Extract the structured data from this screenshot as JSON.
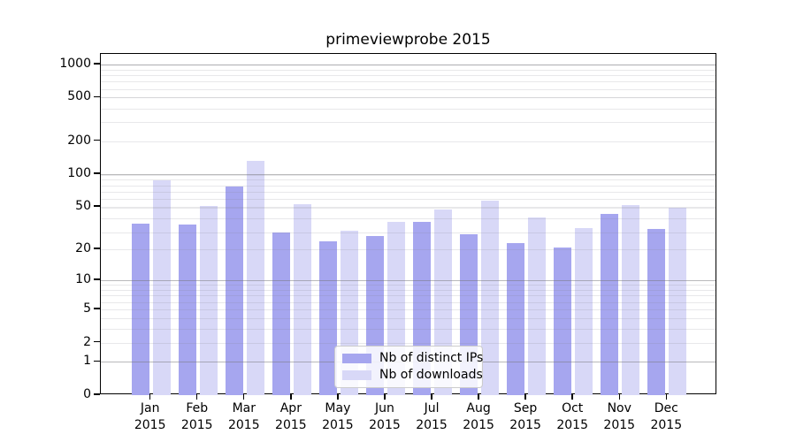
{
  "title": "primeviewprobe 2015",
  "legend": {
    "items": [
      {
        "label": "Nb of distinct IPs",
        "color": "#a6a6ef"
      },
      {
        "label": "Nb of downloads",
        "color": "#d8d8f7"
      }
    ]
  },
  "axes": {
    "y_tick_labels": [
      "1000",
      "500",
      "200",
      "100",
      "50",
      "20",
      "10",
      "5",
      "2",
      "1",
      "0"
    ],
    "x_tick_lines": [
      [
        "Jan",
        "2015"
      ],
      [
        "Feb",
        "2015"
      ],
      [
        "Mar",
        "2015"
      ],
      [
        "Apr",
        "2015"
      ],
      [
        "May",
        "2015"
      ],
      [
        "Jun",
        "2015"
      ],
      [
        "Jul",
        "2015"
      ],
      [
        "Aug",
        "2015"
      ],
      [
        "Sep",
        "2015"
      ],
      [
        "Oct",
        "2015"
      ],
      [
        "Nov",
        "2015"
      ],
      [
        "Dec",
        "2015"
      ]
    ]
  },
  "chart_data": {
    "type": "bar",
    "title": "primeviewprobe 2015",
    "categories": [
      "Jan 2015",
      "Feb 2015",
      "Mar 2015",
      "Apr 2015",
      "May 2015",
      "Jun 2015",
      "Jul 2015",
      "Aug 2015",
      "Sep 2015",
      "Oct 2015",
      "Nov 2015",
      "Dec 2015"
    ],
    "series": [
      {
        "name": "Nb of distinct IPs",
        "color": "#a6a6ef",
        "values": [
          35,
          34,
          77,
          29,
          24,
          27,
          36,
          28,
          23,
          21,
          43,
          31
        ]
      },
      {
        "name": "Nb of downloads",
        "color": "#d8d8f7",
        "values": [
          88,
          51,
          132,
          53,
          30,
          36,
          47,
          57,
          40,
          32,
          52,
          49
        ]
      }
    ],
    "xlabel": "",
    "ylabel": "",
    "yscale": "log(value+1)",
    "yticks": [
      0,
      1,
      2,
      5,
      10,
      20,
      50,
      100,
      200,
      500,
      1000
    ],
    "ylim": [
      0,
      1250
    ],
    "grid": "major and minor horizontal gridlines drawn over bars",
    "legend_position": "lower center, inside axes"
  }
}
